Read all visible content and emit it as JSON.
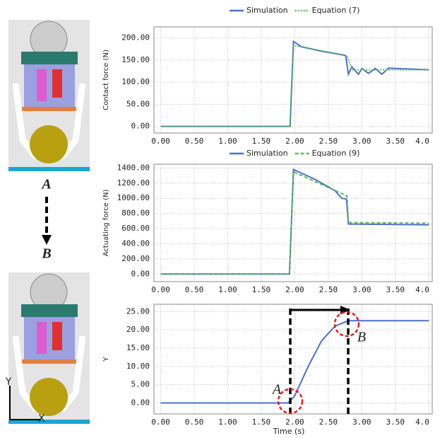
{
  "chart_data": [
    {
      "type": "line",
      "y_label": "Contact force (N)",
      "series": [
        {
          "name": "Simulation",
          "color": "#4a72c9",
          "dash": "solid",
          "x": [
            0,
            1.93,
            1.98,
            2.1,
            2.4,
            2.7,
            2.76,
            2.8,
            2.85,
            2.95,
            3.0,
            3.1,
            3.2,
            3.3,
            3.4,
            3.5,
            4.0
          ],
          "values": [
            0,
            0,
            192,
            180,
            170,
            162,
            160,
            118,
            135,
            118,
            131,
            120,
            131,
            118,
            132,
            131,
            128
          ]
        },
        {
          "name": "Equation (7)",
          "color": "#5cb85c",
          "dash": "dotted",
          "x": [
            0,
            1.93,
            1.98,
            2.78,
            2.85,
            4.0
          ],
          "values": [
            0,
            0,
            183,
            160,
            128,
            128
          ]
        }
      ],
      "xlim": [
        -0.1,
        4.05
      ],
      "xticks": [
        {
          "value": 0,
          "label": "0.00"
        },
        {
          "value": 0.5,
          "label": "0.50"
        },
        {
          "value": 1,
          "label": "1.00"
        },
        {
          "value": 1.5,
          "label": "1.50"
        },
        {
          "value": 2,
          "label": "2.00"
        },
        {
          "value": 2.5,
          "label": "2.50"
        },
        {
          "value": 3,
          "label": "3.00"
        },
        {
          "value": 3.5,
          "label": "3.50"
        },
        {
          "value": 4,
          "label": "4.0"
        }
      ],
      "ylim": [
        -15,
        225
      ],
      "yticks": [
        {
          "value": 0,
          "label": "0.00"
        },
        {
          "value": 50,
          "label": "50.00"
        },
        {
          "value": 100,
          "label": "100.00"
        },
        {
          "value": 150,
          "label": "150.00"
        },
        {
          "value": 200,
          "label": "200.00"
        }
      ],
      "grid": true,
      "legend": "top"
    },
    {
      "type": "line",
      "y_label": "Actuating force (N)",
      "series": [
        {
          "name": "Simulation",
          "color": "#4a72c9",
          "dash": "solid",
          "x": [
            0,
            1.92,
            1.98,
            2.3,
            2.6,
            2.7,
            2.77,
            2.8,
            4.0
          ],
          "values": [
            0,
            0,
            1380,
            1250,
            1100,
            1000,
            990,
            660,
            650
          ]
        },
        {
          "name": "Equation (9)",
          "color": "#5cb85c",
          "dash": "dashed",
          "x": [
            0,
            1.92,
            1.98,
            2.78,
            2.8,
            4.0
          ],
          "values": [
            0,
            0,
            1350,
            1030,
            680,
            670
          ]
        }
      ],
      "xlim": [
        -0.1,
        4.05
      ],
      "xticks": [
        {
          "value": 0,
          "label": "0.00"
        },
        {
          "value": 0.5,
          "label": "0.50"
        },
        {
          "value": 1,
          "label": "1.00"
        },
        {
          "value": 1.5,
          "label": "1.50"
        },
        {
          "value": 2,
          "label": "2.00"
        },
        {
          "value": 2.5,
          "label": "2.50"
        },
        {
          "value": 3,
          "label": "3.00"
        },
        {
          "value": 3.5,
          "label": "3.50"
        },
        {
          "value": 4,
          "label": "4.0"
        }
      ],
      "ylim": [
        -100,
        1450
      ],
      "yticks": [
        {
          "value": 0,
          "label": "0.00"
        },
        {
          "value": 200,
          "label": "200.00"
        },
        {
          "value": 400,
          "label": "400.00"
        },
        {
          "value": 600,
          "label": "600.00"
        },
        {
          "value": 800,
          "label": "800.00"
        },
        {
          "value": 1000,
          "label": "1000.00"
        },
        {
          "value": 1200,
          "label": "1200.00"
        },
        {
          "value": 1400,
          "label": "1400.00"
        }
      ],
      "grid": true,
      "legend": "top"
    },
    {
      "type": "line",
      "y_label": "Y",
      "x_label": "Time (s)",
      "series": [
        {
          "color": "#4a72c9",
          "dash": "solid",
          "x": [
            0,
            1.9,
            2.0,
            2.2,
            2.4,
            2.6,
            2.8,
            4.0
          ],
          "values": [
            0,
            0,
            2,
            10,
            17,
            21,
            22.5,
            22.5
          ]
        }
      ],
      "xlim": [
        -0.1,
        4.05
      ],
      "xticks": [
        {
          "value": 0,
          "label": "0.00"
        },
        {
          "value": 0.5,
          "label": "0.50"
        },
        {
          "value": 1,
          "label": "1.00"
        },
        {
          "value": 1.5,
          "label": "1.50"
        },
        {
          "value": 2,
          "label": "2.00"
        },
        {
          "value": 2.5,
          "label": "2.50"
        },
        {
          "value": 3,
          "label": "3.00"
        },
        {
          "value": 3.5,
          "label": "3.50"
        },
        {
          "value": 4,
          "label": "4.0"
        }
      ],
      "ylim": [
        -3,
        27
      ],
      "yticks": [
        {
          "value": 0,
          "label": "0.00"
        },
        {
          "value": 5,
          "label": "5.00"
        },
        {
          "value": 10,
          "label": "10.00"
        },
        {
          "value": 15,
          "label": "15.00"
        },
        {
          "value": 20,
          "label": "20.00"
        },
        {
          "value": 25,
          "label": "25.00"
        }
      ],
      "grid": true,
      "annotations": [
        "A",
        "B"
      ]
    }
  ],
  "illustration": {
    "start": "A",
    "end": "B",
    "x_axis": "X",
    "y_axis": "Y"
  }
}
